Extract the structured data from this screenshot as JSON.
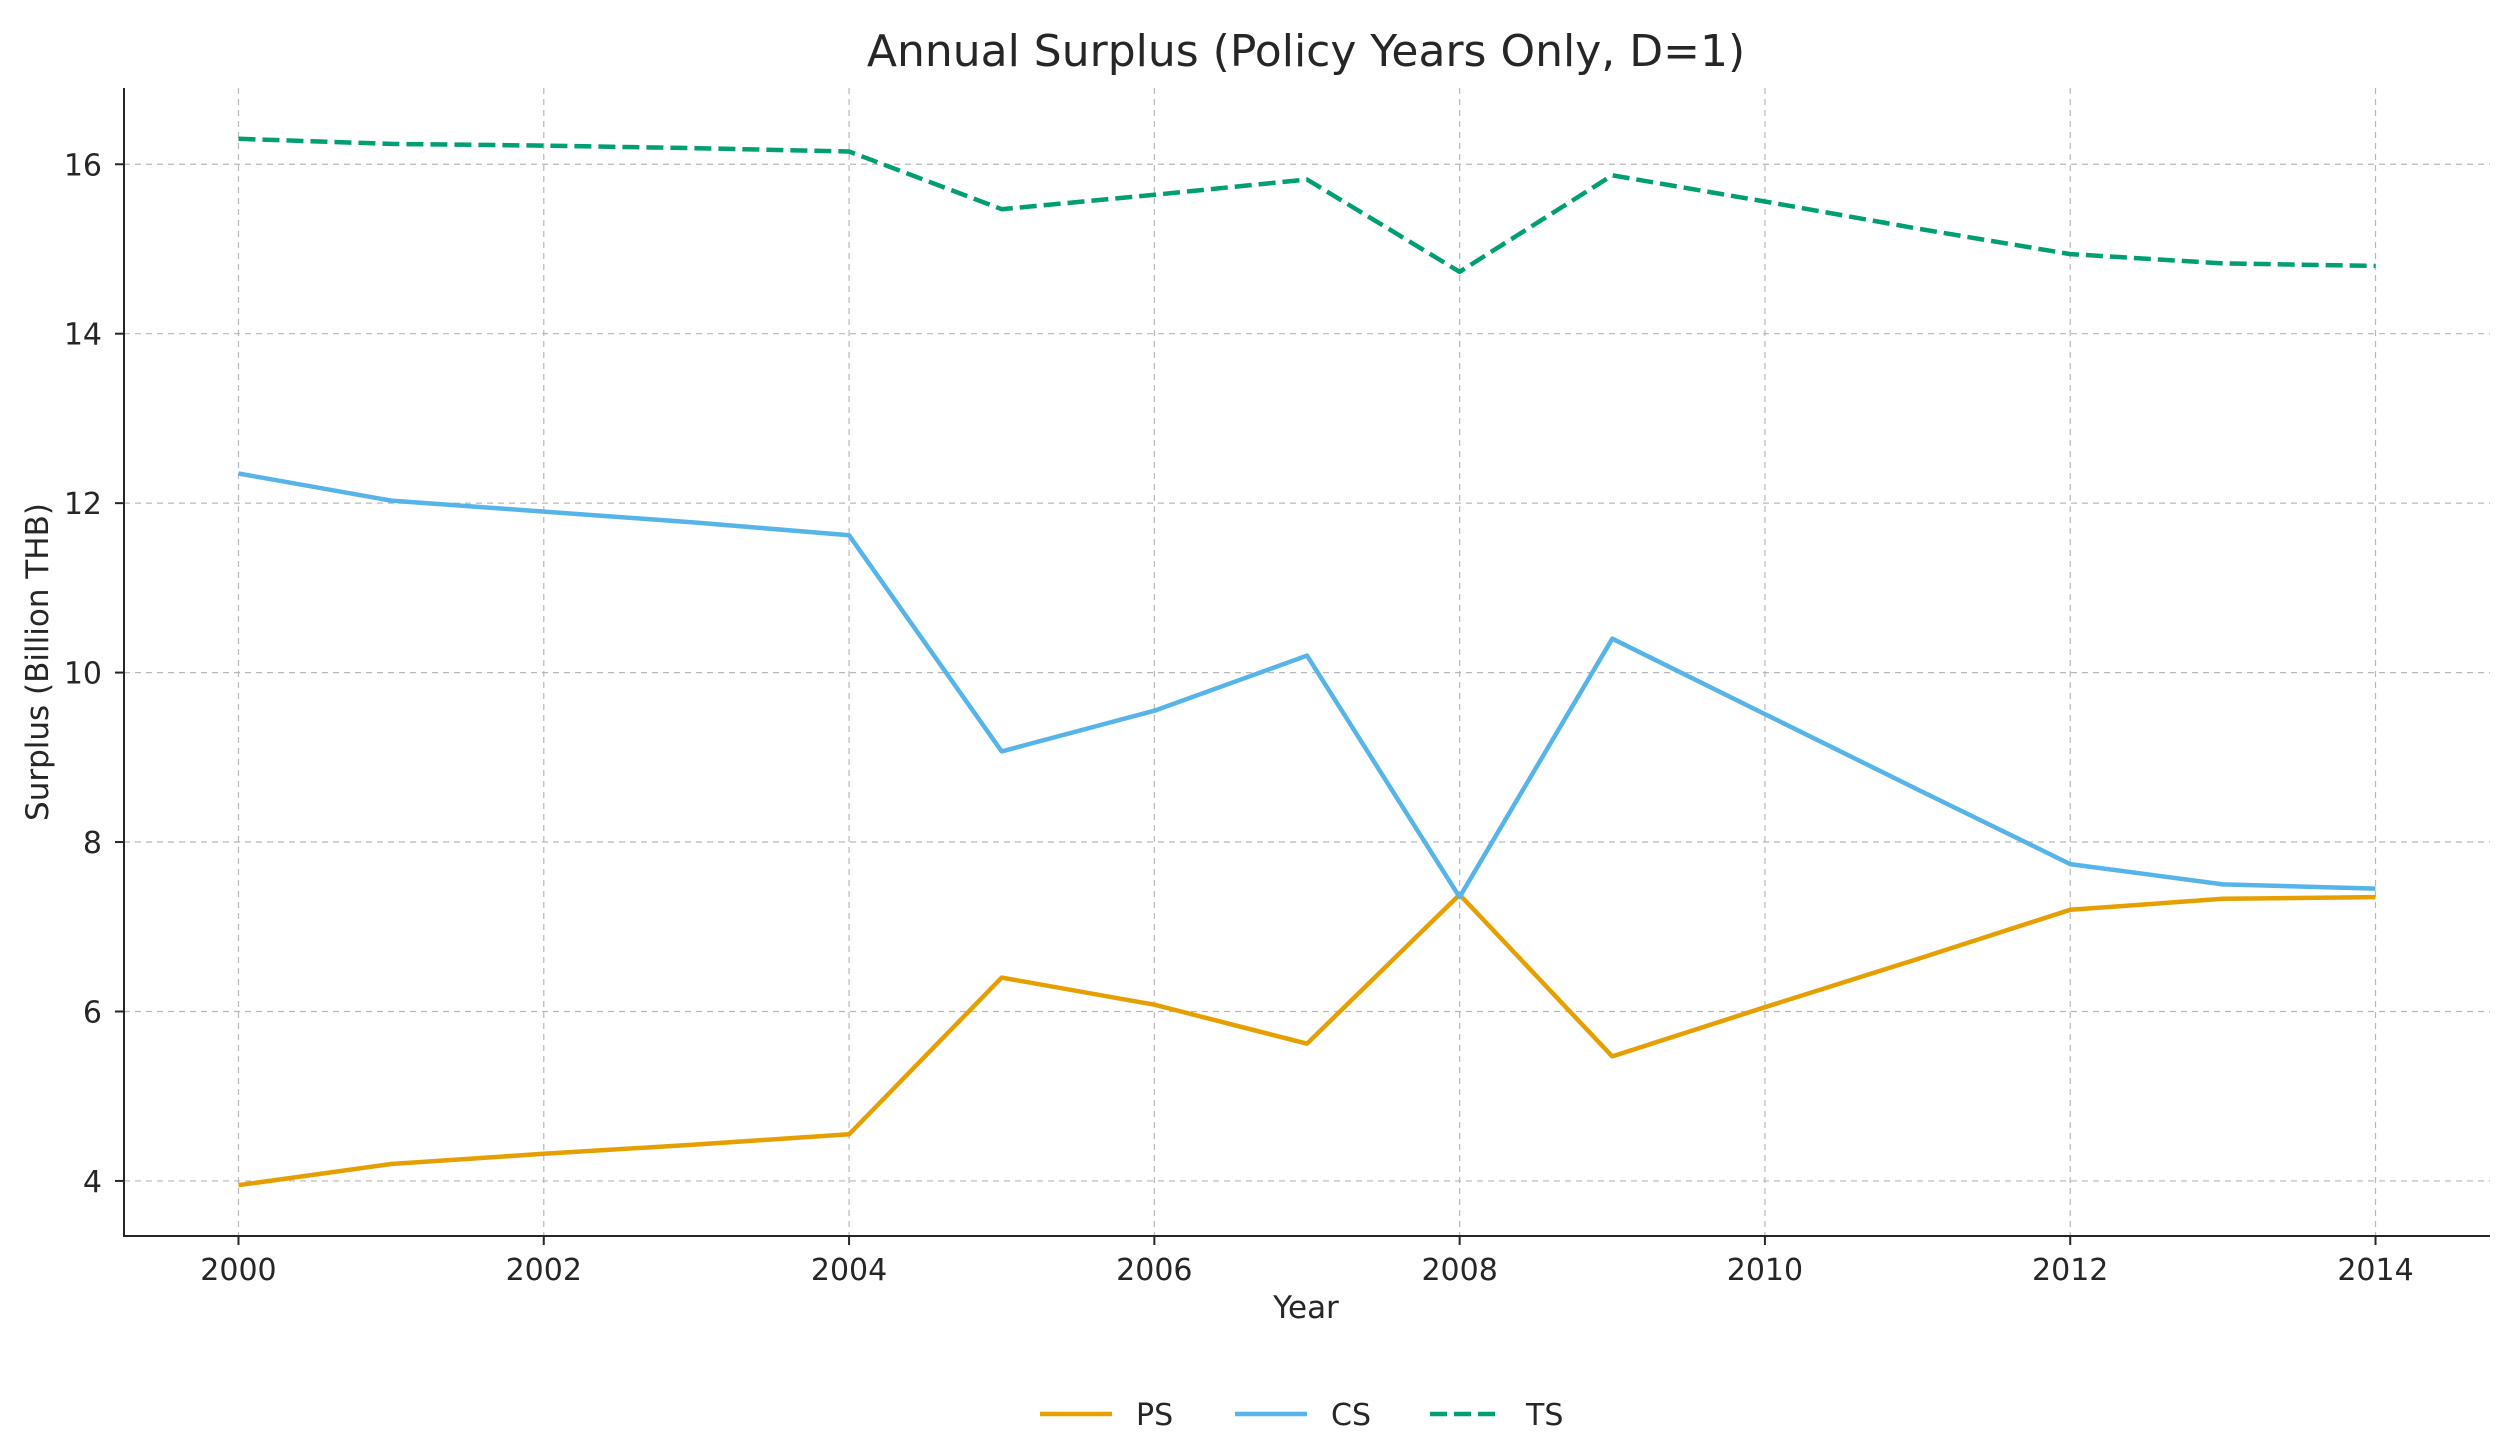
{
  "chart_data": {
    "type": "line",
    "title": "Annual Surplus (Policy Years Only, D=1)",
    "xlabel": "Year",
    "ylabel": "Surplus (Billion THB)",
    "xlim": [
      1999.25,
      2014.75
    ],
    "ylim": [
      3.35,
      16.9
    ],
    "xticks": [
      2000,
      2002,
      2004,
      2006,
      2008,
      2010,
      2012,
      2014
    ],
    "yticks": [
      4,
      6,
      8,
      10,
      12,
      14,
      16
    ],
    "grid": true,
    "legend_position": "bottom-center",
    "x": [
      2000,
      2001,
      2002,
      2003,
      2004,
      2005,
      2006,
      2007,
      2008,
      2009,
      2010,
      2011,
      2012,
      2013,
      2014
    ],
    "series": [
      {
        "name": "PS",
        "color": "#E69F00",
        "style": "solid",
        "values": [
          3.95,
          4.2,
          4.32,
          4.43,
          4.55,
          6.4,
          6.08,
          5.62,
          7.38,
          5.47,
          6.05,
          6.62,
          7.2,
          7.33,
          7.35
        ]
      },
      {
        "name": "CS",
        "color": "#56B4E9",
        "style": "solid",
        "values": [
          12.35,
          12.03,
          11.9,
          11.77,
          11.62,
          9.07,
          9.55,
          10.2,
          7.35,
          10.4,
          9.51,
          8.62,
          7.74,
          7.5,
          7.45
        ]
      },
      {
        "name": "TS",
        "color": "#009E73",
        "style": "dashed",
        "values": [
          16.3,
          16.24,
          16.22,
          16.19,
          16.15,
          15.47,
          15.64,
          15.82,
          14.73,
          15.87,
          15.56,
          15.24,
          14.94,
          14.83,
          14.8
        ]
      }
    ]
  }
}
